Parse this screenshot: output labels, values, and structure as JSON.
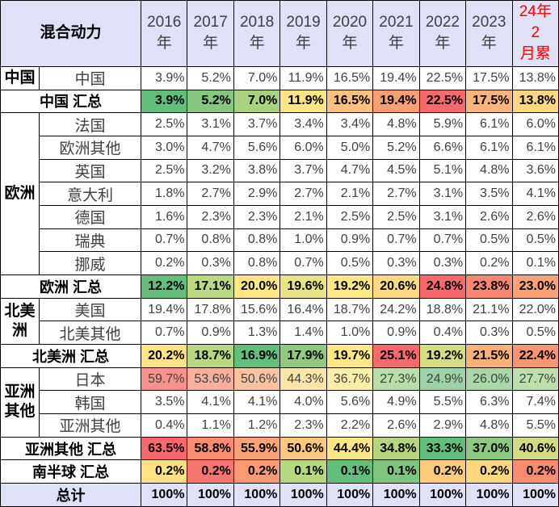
{
  "table": {
    "header": {
      "corner": "混合动力",
      "header_background": "#dfe1f7",
      "columns": [
        {
          "lines": [
            "2016",
            "年"
          ]
        },
        {
          "lines": [
            "2017",
            "年"
          ]
        },
        {
          "lines": [
            "2018",
            "年"
          ]
        },
        {
          "lines": [
            "2019",
            "年"
          ]
        },
        {
          "lines": [
            "2020",
            "年"
          ]
        },
        {
          "lines": [
            "2021",
            "年"
          ]
        },
        {
          "lines": [
            "2022",
            "年"
          ]
        },
        {
          "lines": [
            "2023",
            "年"
          ]
        },
        {
          "lines": [
            "24年2",
            "月累"
          ],
          "color": "#ff0000"
        }
      ]
    },
    "sections": [
      {
        "group": "中国",
        "rows": [
          {
            "name": "中国",
            "values": [
              "3.9%",
              "5.2%",
              "7.0%",
              "11.9%",
              "16.5%",
              "19.4%",
              "22.5%",
              "17.5%",
              "13.8%"
            ]
          }
        ],
        "summary": {
          "label": "中国 汇总",
          "values": [
            "3.9%",
            "5.2%",
            "7.0%",
            "11.9%",
            "16.5%",
            "19.4%",
            "22.5%",
            "17.5%",
            "13.8%"
          ],
          "colors": [
            "#63be7b",
            "#84c77d",
            "#a9d27f",
            "#fee583",
            "#fcc17c",
            "#f99d75",
            "#f8696b",
            "#fbb479",
            "#fed880"
          ]
        }
      },
      {
        "group": "欧洲",
        "rows": [
          {
            "name": "法国",
            "values": [
              "2.5%",
              "3.1%",
              "3.7%",
              "3.4%",
              "3.4%",
              "4.8%",
              "5.9%",
              "6.1%",
              "6.0%"
            ]
          },
          {
            "name": "欧洲其他",
            "values": [
              "3.0%",
              "4.7%",
              "5.6%",
              "6.0%",
              "5.0%",
              "5.2%",
              "6.6%",
              "6.1%",
              "6.1%"
            ]
          },
          {
            "name": "英国",
            "values": [
              "2.5%",
              "3.2%",
              "3.8%",
              "3.7%",
              "4.7%",
              "4.5%",
              "5.1%",
              "4.8%",
              "3.6%"
            ]
          },
          {
            "name": "意大利",
            "values": [
              "1.8%",
              "2.7%",
              "2.9%",
              "2.7%",
              "2.1%",
              "2.7%",
              "3.1%",
              "3.5%",
              "4.1%"
            ]
          },
          {
            "name": "德国",
            "values": [
              "1.6%",
              "2.3%",
              "2.3%",
              "2.1%",
              "2.5%",
              "2.5%",
              "3.1%",
              "2.6%",
              "2.6%"
            ]
          },
          {
            "name": "瑞典",
            "values": [
              "0.7%",
              "0.8%",
              "0.8%",
              "1.0%",
              "0.9%",
              "0.7%",
              "0.7%",
              "0.5%",
              "0.5%"
            ]
          },
          {
            "name": "挪威",
            "values": [
              "0.2%",
              "0.3%",
              "0.8%",
              "0.7%",
              "0.5%",
              "0.3%",
              "0.3%",
              "0.2%",
              "0.1%"
            ]
          }
        ],
        "summary": {
          "label": "欧洲 汇总",
          "values": [
            "12.2%",
            "17.1%",
            "20.0%",
            "19.6%",
            "19.2%",
            "20.6%",
            "24.8%",
            "23.8%",
            "23.0%"
          ],
          "colors": [
            "#63be7b",
            "#bcd881",
            "#fee783",
            "#e8e383",
            "#fde884",
            "#fed980",
            "#f8696b",
            "#f98670",
            "#fba276"
          ]
        }
      },
      {
        "group": "北美洲",
        "rows": [
          {
            "name": "美国",
            "values": [
              "19.4%",
              "17.8%",
              "15.6%",
              "16.4%",
              "18.7%",
              "24.2%",
              "18.8%",
              "21.1%",
              "22.0%"
            ]
          },
          {
            "name": "北美其他",
            "values": [
              "0.7%",
              "0.9%",
              "1.3%",
              "1.4%",
              "1.0%",
              "0.9%",
              "0.4%",
              "0.3%",
              "0.5%"
            ]
          }
        ],
        "summary": {
          "label": "北美洲 汇总",
          "values": [
            "20.2%",
            "18.7%",
            "16.9%",
            "17.9%",
            "19.7%",
            "25.1%",
            "19.2%",
            "21.5%",
            "22.4%"
          ],
          "colors": [
            "#fde383",
            "#b9d780",
            "#63be7b",
            "#8fca7e",
            "#ffe884",
            "#f8696b",
            "#d4dd82",
            "#fbb279",
            "#fa9473"
          ]
        }
      },
      {
        "group": "亚洲其他",
        "rows": [
          {
            "name": "日本",
            "values": [
              "59.7%",
              "53.6%",
              "50.6%",
              "44.3%",
              "36.7%",
              "27.3%",
              "24.9%",
              "26.0%",
              "27.7%"
            ],
            "colors": [
              "#f6928d",
              "#f8b09a",
              "#fac3a0",
              "#fde3a8",
              "#fcefa9",
              "#b9ddab",
              "#9dd2a8",
              "#a9d7a9",
              "#bedfac"
            ]
          },
          {
            "name": "韩国",
            "values": [
              "3.5%",
              "4.1%",
              "4.1%",
              "4.0%",
              "5.6%",
              "4.9%",
              "5.5%",
              "6.3%",
              "7.4%"
            ]
          },
          {
            "name": "亚洲其他",
            "values": [
              "0.4%",
              "1.1%",
              "1.2%",
              "2.3%",
              "2.2%",
              "2.6%",
              "2.9%",
              "4.8%",
              "5.5%"
            ]
          }
        ],
        "summary": {
          "label": "亚洲其他 汇总",
          "values": [
            "63.5%",
            "58.8%",
            "55.9%",
            "50.6%",
            "44.4%",
            "34.8%",
            "33.3%",
            "37.0%",
            "40.6%"
          ],
          "colors": [
            "#f8696b",
            "#fa8c72",
            "#fba276",
            "#fdc77d",
            "#fee683",
            "#b5d580",
            "#63be7b",
            "#8ac97e",
            "#d2dd82"
          ]
        }
      },
      {
        "summary": {
          "label": "南半球 汇总",
          "values": [
            "0.2%",
            "0.2%",
            "0.2%",
            "0.1%",
            "0.1%",
            "0.1%",
            "0.2%",
            "0.2%",
            "0.2%"
          ],
          "colors": [
            "#fee182",
            "#f8766d",
            "#fa9a74",
            "#b7d780",
            "#63be7b",
            "#7ec57d",
            "#fdca7e",
            "#fed680",
            "#f98b71"
          ]
        }
      }
    ],
    "total": {
      "label": "总计",
      "values": [
        "100%",
        "100%",
        "100%",
        "100%",
        "100%",
        "100%",
        "100%",
        "100%",
        "100%"
      ]
    }
  }
}
